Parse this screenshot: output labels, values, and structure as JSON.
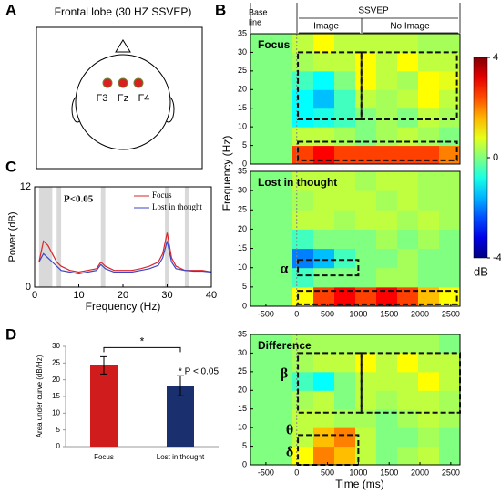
{
  "panel_labels": [
    "A",
    "B",
    "C",
    "D"
  ],
  "panel_a": {
    "title": "Frontal lobe (30 HZ SSVEP)",
    "electrodes": [
      "F3",
      "Fz",
      "F4"
    ]
  },
  "header": {
    "baseline": [
      "Base",
      "line"
    ],
    "ssvep": "SSVEP",
    "image": "Image",
    "no_image": "No Image"
  },
  "colorbar": {
    "range": [
      -4,
      4
    ],
    "ticks": [
      -4,
      0,
      4
    ],
    "label": "dB"
  },
  "chart_data": [
    {
      "type": "line",
      "ylabel": "Power (dB)",
      "xlabel": "Frequency (Hz)",
      "annotation": "P<0.05",
      "xlim": [
        0,
        40
      ],
      "xticks": [
        0,
        10,
        20,
        30,
        40
      ],
      "ylim": [
        0,
        12
      ],
      "yticks": [
        0,
        12
      ],
      "shaded": [
        [
          1,
          4
        ],
        [
          5,
          6
        ],
        [
          15,
          16
        ],
        [
          29.5,
          30.5
        ],
        [
          34,
          35
        ]
      ],
      "x": [
        1,
        2,
        3,
        4,
        5,
        6,
        8,
        10,
        12,
        14,
        15,
        16,
        18,
        20,
        22,
        24,
        26,
        28,
        29,
        30,
        31,
        32,
        34,
        36,
        38,
        40
      ],
      "series": [
        {
          "name": "Focus",
          "color": "#d9262b",
          "values": [
            3,
            5.5,
            5,
            4,
            3,
            2.5,
            2,
            1.8,
            2,
            2.2,
            3,
            2.5,
            2,
            2,
            2,
            2.2,
            2.5,
            3,
            4,
            6.5,
            3.5,
            2.5,
            2,
            2,
            2,
            1.8
          ]
        },
        {
          "name": "Lost in thought",
          "color": "#3b46c4",
          "values": [
            3,
            4,
            3.5,
            3,
            2.5,
            2,
            1.8,
            1.6,
            1.8,
            2,
            2.7,
            2.2,
            1.8,
            1.8,
            1.8,
            2,
            2.2,
            2.6,
            3.5,
            5.5,
            3,
            2.2,
            2,
            1.9,
            1.9,
            1.8
          ]
        }
      ]
    },
    {
      "type": "bar",
      "ylabel": "Area under curve (dB/Hz)",
      "categories": [
        "Focus",
        "Lost in thought"
      ],
      "values": [
        24.3,
        18.2
      ],
      "errors": [
        2.6,
        3
      ],
      "colors": [
        "#d01c1c",
        "#1a2f6e"
      ],
      "ylim": [
        0,
        30
      ],
      "yticks": [
        0,
        5,
        10,
        15,
        20,
        25,
        30
      ],
      "star": "*",
      "annotation": "* P < 0.05"
    },
    {
      "type": "heatmap",
      "title": "Focus",
      "ylabel": "Frequency (Hz)",
      "xlim": [
        -750,
        2650
      ],
      "xbins": [
        -750,
        -410,
        -70,
        270,
        610,
        950,
        1290,
        1630,
        1970,
        2310,
        2650
      ],
      "ylim": [
        0,
        35
      ],
      "yticks": [
        0,
        5,
        10,
        15,
        20,
        25,
        30,
        35
      ],
      "ybins": [
        0,
        5,
        10,
        15,
        20,
        25,
        30,
        35
      ],
      "values": [
        [
          0,
          0,
          2.5,
          3,
          2.5,
          2.5,
          2.5,
          2.5,
          2.5,
          2
        ],
        [
          0,
          0,
          0.5,
          0.5,
          0.3,
          0,
          0.3,
          0.5,
          0.3,
          0
        ],
        [
          0,
          0,
          -1,
          -0.8,
          -0.5,
          0,
          0.3,
          0,
          0.5,
          0.3
        ],
        [
          0,
          0,
          -1,
          -1.5,
          -0.5,
          0.5,
          0.3,
          0.5,
          1,
          0.5
        ],
        [
          0,
          0,
          -0.5,
          -1,
          0,
          1,
          0.5,
          0.3,
          1,
          0.8
        ],
        [
          0,
          0,
          0.3,
          0.5,
          0.5,
          1,
          0.5,
          1,
          0.5,
          0.5
        ],
        [
          0,
          0,
          0.5,
          1,
          0.5,
          0.5,
          0.5,
          0.5,
          0.3,
          0.3
        ]
      ],
      "boxes": [
        [
          20,
          1050,
          12,
          30
        ],
        [
          1050,
          2600,
          12,
          30
        ],
        [
          20,
          2600,
          1,
          6
        ]
      ],
      "annotations": []
    },
    {
      "type": "heatmap",
      "title": "Lost in thought",
      "xlim": [
        -750,
        2650
      ],
      "xticks": [
        -500,
        0,
        500,
        1000,
        1500,
        2000,
        2500
      ],
      "xbins": [
        -750,
        -410,
        -70,
        270,
        610,
        950,
        1290,
        1630,
        1970,
        2310,
        2650
      ],
      "ylim": [
        0,
        35
      ],
      "yticks": [
        0,
        5,
        10,
        15,
        20,
        25,
        30,
        35
      ],
      "ybins": [
        0,
        5,
        10,
        15,
        20,
        25,
        30,
        35
      ],
      "values": [
        [
          0,
          0,
          1,
          2.5,
          3,
          2.5,
          3,
          2.5,
          1.5,
          1
        ],
        [
          0,
          0,
          -0.5,
          0,
          0,
          0,
          0.3,
          0.3,
          0,
          0
        ],
        [
          0,
          0,
          -2,
          -1.5,
          -0.5,
          0,
          0,
          0.3,
          0,
          0
        ],
        [
          0,
          0,
          -0.5,
          0,
          0,
          0,
          0.3,
          0,
          0.3,
          0
        ],
        [
          0,
          0,
          0.5,
          0.5,
          0.3,
          0.5,
          0.5,
          0.3,
          0.5,
          0.3
        ],
        [
          0,
          0,
          0.3,
          0.5,
          0.5,
          0.5,
          0.3,
          0.5,
          0.3,
          0.3
        ],
        [
          0,
          0,
          0.5,
          0.5,
          0.5,
          0.3,
          0.5,
          0.5,
          0.3,
          0.3
        ]
      ],
      "boxes": [
        [
          20,
          1000,
          8,
          12
        ],
        [
          20,
          2600,
          0.5,
          4
        ]
      ],
      "annotations": [
        "α"
      ]
    },
    {
      "type": "heatmap",
      "title": "Difference",
      "xlabel": "Time (ms)",
      "xlim": [
        -750,
        2650
      ],
      "xticks": [
        -500,
        0,
        500,
        1000,
        1500,
        2000,
        2500
      ],
      "xbins": [
        -750,
        -410,
        -70,
        270,
        610,
        950,
        1290,
        1630,
        1970,
        2310,
        2650
      ],
      "ylim": [
        0,
        35
      ],
      "yticks": [
        0,
        5,
        10,
        15,
        20,
        25,
        30,
        35
      ],
      "ybins": [
        0,
        5,
        10,
        15,
        20,
        25,
        30,
        35
      ],
      "values": [
        [
          0,
          0,
          1,
          2,
          1.5,
          0.5,
          0,
          0.3,
          0.5,
          0
        ],
        [
          0,
          0,
          0.5,
          1.5,
          2,
          0.5,
          0,
          0,
          0.3,
          0
        ],
        [
          0,
          0,
          0.5,
          0.5,
          0.3,
          0.3,
          0,
          0.3,
          0.5,
          0.3
        ],
        [
          0,
          0,
          0.3,
          0.5,
          0,
          0.5,
          0.3,
          0.5,
          0.5,
          0.3
        ],
        [
          0,
          0,
          -0.5,
          -1,
          0,
          0.5,
          0.5,
          0.5,
          1,
          0.5
        ],
        [
          0,
          0,
          0.3,
          0.5,
          0.5,
          1,
          0.5,
          1,
          0.5,
          0.5
        ],
        [
          0,
          0,
          0.3,
          0.3,
          0.3,
          0.3,
          0.3,
          0.3,
          0.3,
          0
        ]
      ],
      "boxes": [
        [
          20,
          1050,
          14,
          30
        ],
        [
          1050,
          2650,
          14,
          30
        ],
        [
          20,
          1000,
          0,
          8
        ]
      ],
      "annotations": [
        "β",
        "θ",
        "δ"
      ]
    }
  ]
}
